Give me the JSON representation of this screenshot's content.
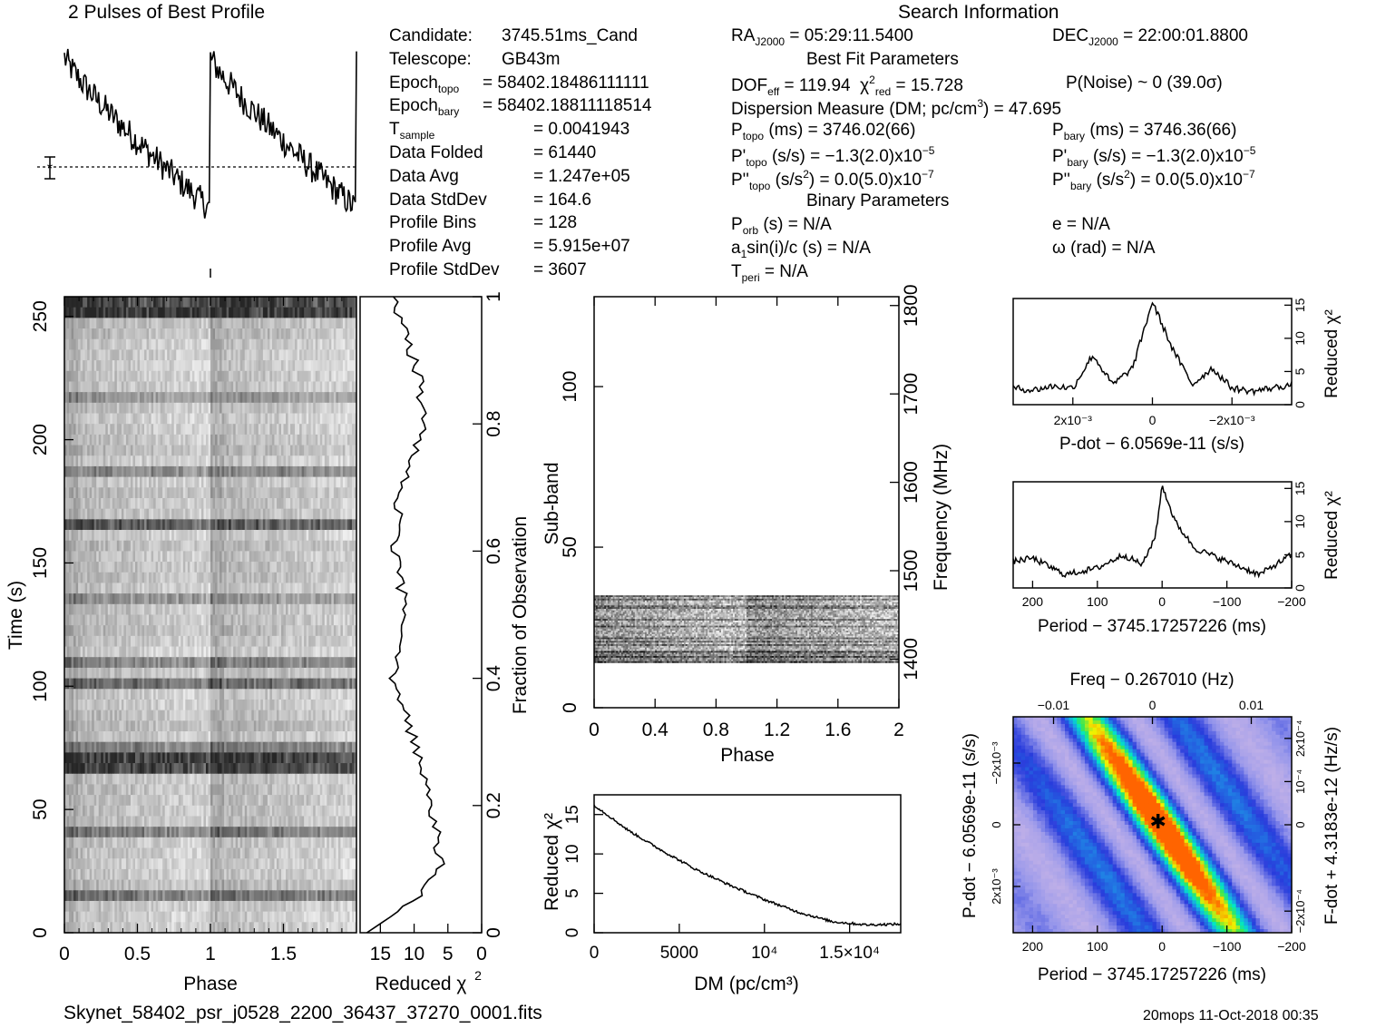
{
  "top_title": "2 Pulses of Best Profile",
  "search_title": "Search Information",
  "candidate_info": [
    {
      "label": "Candidate:",
      "value": "3745.51ms_Cand"
    },
    {
      "label": "Telescope:",
      "value": "GB43m"
    },
    {
      "label": "Epoch",
      "sub": "topo",
      "value": "= 58402.18486111111"
    },
    {
      "label": "Epoch",
      "sub": "bary",
      "value": "= 58402.18811118514"
    },
    {
      "label": "T",
      "sub": "sample",
      "value": "=   0.0041943"
    },
    {
      "label": "Data Folded",
      "value": "=   61440"
    },
    {
      "label": "Data Avg",
      "value": "=   1.247e+05"
    },
    {
      "label": "Data StdDev",
      "value": "=   164.6"
    },
    {
      "label": "Profile Bins",
      "value": "=   128"
    },
    {
      "label": "Profile Avg",
      "value": "=   5.915e+07"
    },
    {
      "label": "Profile StdDev",
      "value": "=   3607"
    }
  ],
  "search_info": {
    "ra": "RA",
    "ra_sub": "J2000",
    "ra_value": "= 05:29:11.5400",
    "dec": "DEC",
    "dec_sub": "J2000",
    "dec_value": "= 22:00:01.8800",
    "best_fit_title": "Best Fit Parameters",
    "dof_line": "DOF",
    "dof_sub": "eff",
    "dof_value": "= 119.94",
    "chi_line": "χ",
    "chi_sup": "2",
    "chi_sub": "red",
    "chi_value": "= 15.728",
    "pnoise": "P(Noise) ~ 0    (39.0σ)",
    "dm_line": "Dispersion Measure (DM; pc/cm",
    "dm_sup": "3",
    "dm_value": ") = 47.695",
    "ptopo": "P",
    "ptopo_sub": "topo",
    "ptopo_value": "(ms)  =   3746.02(66)",
    "pbary": "P",
    "pbary_sub": "bary",
    "pbary_value": "(ms)  =   3746.36(66)",
    "pdtopo": "P'",
    "pdtopo_sub": "topo",
    "pdtopo_value": "(s/s) = −1.3(2.0)x10",
    "pdtopo_exp": "−5",
    "pdbary": "P'",
    "pdbary_sub": "bary",
    "pdbary_value": "(s/s) = −1.3(2.0)x10",
    "pdbary_exp": "−5",
    "pddtopo": "P''",
    "pddtopo_sub": "topo",
    "pddtopo_value": "(s/s",
    "pddtopo_sup": "2",
    "pddtopo_rest": ") = 0.0(5.0)x10",
    "pddtopo_exp": "−7",
    "pddbary": "P''",
    "pddbary_sub": "bary",
    "pddbary_value": "(s/s",
    "pddbary_sup": "2",
    "pddbary_rest": ") = 0.0(5.0)x10",
    "pddbary_exp": "−7",
    "binary_title": "Binary Parameters",
    "porb": "P",
    "porb_sub": "orb",
    "porb_value": "(s) = N/A",
    "ecc": "e = N/A",
    "a1": "a",
    "a1_sub": "1",
    "a1_value": "sin(i)/c (s) = N/A",
    "omega": "ω (rad) = N/A",
    "tperi": "T",
    "tperi_sub": "peri",
    "tperi_value": "= N/A"
  },
  "footer": {
    "filename": "Skynet_58402_psr_j0528_2200_36437_37270_0001.fits",
    "stamp": "20mops 11-Oct-2018 00:35"
  },
  "chart_data": [
    {
      "type": "line",
      "title": "2 Pulses of Best Profile",
      "description_values": "profile intensity over 2 pulse periods (phase 0-2), shape: sawtooth decaying from high at phase 0 to minimum near phase 1",
      "x": [
        0,
        0.1,
        0.2,
        0.3,
        0.4,
        0.5,
        0.6,
        0.7,
        0.8,
        0.9,
        1.0,
        1.1,
        1.2,
        1.3,
        1.4,
        1.5,
        1.6,
        1.7,
        1.8,
        1.9,
        2.0
      ],
      "values": [
        0.95,
        0.8,
        0.65,
        0.6,
        0.5,
        0.45,
        0.35,
        0.3,
        0.25,
        0.15,
        1.0,
        0.8,
        0.7,
        0.6,
        0.5,
        0.45,
        0.4,
        0.32,
        0.25,
        0.15,
        0.95
      ]
    },
    {
      "type": "heatmap",
      "xlabel": "Phase",
      "ylabel": "Time (s)",
      "right_label": "Fraction of Observation",
      "x_ticks": [
        "0",
        "0.5",
        "1",
        "1.5"
      ],
      "y_ticks": [
        "0",
        "50",
        "100",
        "150",
        "200",
        "250"
      ],
      "right_ticks": [
        "0",
        "0.2",
        "0.4",
        "0.6",
        "0.8",
        "1"
      ],
      "xlim": [
        0,
        2
      ],
      "ylim": [
        0,
        258
      ]
    },
    {
      "type": "line",
      "xlabel": "Reduced χ²",
      "x_ticks": [
        "15",
        "10",
        "5",
        "0"
      ],
      "xlim": [
        18,
        0
      ],
      "fraction": [
        0.0,
        0.05,
        0.1,
        0.2,
        0.3,
        0.4,
        0.5,
        0.6,
        0.7,
        0.8,
        0.9,
        1.0
      ],
      "chi2": [
        17,
        10,
        6,
        7.5,
        10,
        13,
        11,
        13,
        12,
        8,
        10,
        13
      ]
    },
    {
      "type": "heatmap",
      "xlabel": "Phase",
      "ylabel": "Sub-band",
      "right_label": "Frequency (MHz)",
      "x_ticks": [
        "0",
        "0.4",
        "0.8",
        "1.2",
        "1.6",
        "2"
      ],
      "y_ticks": [
        "0",
        "50",
        "100"
      ],
      "right_ticks": [
        "1400",
        "1500",
        "1600",
        "1700",
        "1800"
      ],
      "xlim": [
        0,
        2
      ],
      "ylim": [
        0,
        128
      ]
    },
    {
      "type": "line",
      "xlabel": "DM (pc/cm³)",
      "ylabel": "Reduced χ²",
      "x_ticks": [
        "0",
        "5000",
        "10⁴",
        "1.5×10⁴"
      ],
      "y_ticks": [
        "0",
        "5",
        "10",
        "15"
      ],
      "xlim": [
        0,
        18000
      ],
      "ylim": [
        0,
        17.5
      ],
      "x": [
        0,
        2000,
        4000,
        6000,
        8000,
        10000,
        12000,
        14000,
        16000,
        18000
      ],
      "values": [
        16.2,
        13.0,
        10.4,
        8.0,
        6.0,
        4.2,
        2.6,
        1.4,
        1.0,
        1.1
      ]
    },
    {
      "type": "line",
      "xlabel": "P-dot − 6.0569e-11 (s/s)",
      "ylabel": "Reduced χ²",
      "x_ticks": [
        "2x10⁻³",
        "0",
        "−2x10⁻³"
      ],
      "y_ticks": [
        "0",
        "5",
        "10",
        "15"
      ],
      "xlim": [
        0.0035,
        -0.0035
      ],
      "ylim": [
        0,
        16
      ],
      "x": [
        0.0035,
        0.003,
        0.0025,
        0.002,
        0.0015,
        0.001,
        0.0005,
        0,
        -0.0005,
        -0.001,
        -0.0015,
        -0.002,
        -0.0025,
        -0.003,
        -0.0035
      ],
      "values": [
        2.5,
        2.2,
        2.8,
        2.5,
        7.5,
        3.0,
        5.5,
        15.5,
        8.5,
        3.0,
        5.5,
        2.5,
        2.0,
        2.5,
        3.0
      ]
    },
    {
      "type": "line",
      "xlabel": "Period − 3745.17257226 (ms)",
      "ylabel": "Reduced χ²",
      "x_ticks": [
        "200",
        "100",
        "0",
        "−100",
        "−200"
      ],
      "y_ticks": [
        "0",
        "5",
        "10",
        "15"
      ],
      "xlim": [
        230,
        -200
      ],
      "ylim": [
        0,
        16
      ],
      "x": [
        230,
        200,
        150,
        100,
        60,
        30,
        10,
        0,
        -20,
        -50,
        -100,
        -150,
        -200
      ],
      "values": [
        4,
        4.5,
        2,
        3,
        5,
        3.5,
        8,
        15.5,
        10,
        6,
        4,
        2,
        5
      ]
    },
    {
      "type": "heatmap",
      "title": "Freq − 0.267010 (Hz)",
      "xlabel": "Period − 3745.17257226 (ms)",
      "ylabel": "P-dot − 6.0569e-11 (s/s)",
      "right_label": "F-dot + 4.3183e-12 (Hz/s)",
      "x_ticks": [
        "200",
        "100",
        "0",
        "−100",
        "−200"
      ],
      "top_ticks": [
        "−0.01",
        "0",
        "0.01"
      ],
      "y_ticks": [
        "2x10⁻³",
        "0",
        "−2x10⁻³"
      ],
      "right_ticks": [
        "−2x10⁻⁴",
        "0",
        "10⁻⁴",
        "2x10⁻⁴"
      ]
    }
  ]
}
